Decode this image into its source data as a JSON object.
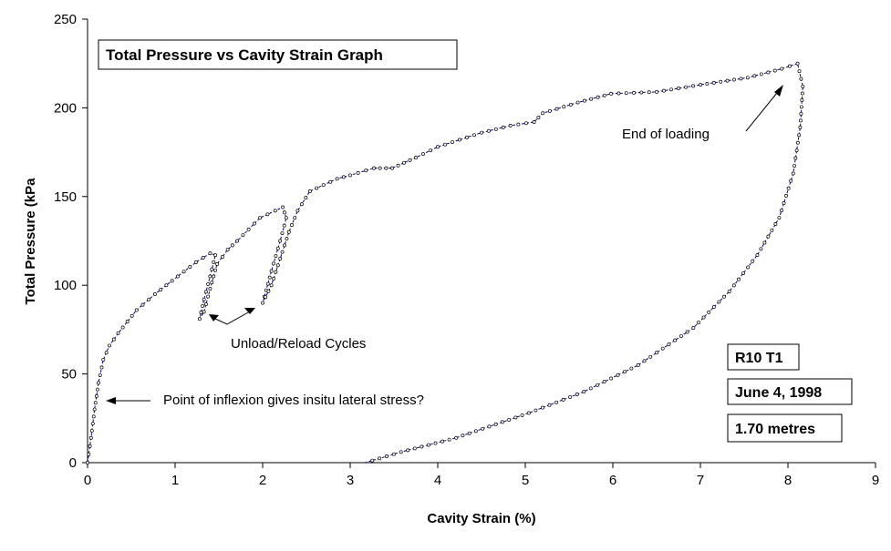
{
  "chart_data": {
    "type": "scatter",
    "title": "Total Pressure vs Cavity Strain Graph",
    "xlabel": "Cavity Strain (%)",
    "ylabel": "Total Pressure (kPa",
    "xlim": [
      0,
      9
    ],
    "ylim": [
      0,
      250
    ],
    "xticks": [
      0,
      1,
      2,
      3,
      4,
      5,
      6,
      7,
      8,
      9
    ],
    "yticks": [
      0,
      50,
      100,
      150,
      200,
      250
    ],
    "grid": false,
    "line_color": "#000080",
    "series": [
      {
        "points": [
          [
            0,
            0
          ],
          [
            0.04,
            14
          ],
          [
            0.08,
            30
          ],
          [
            0.125,
            45
          ],
          [
            0.18,
            58
          ],
          [
            0.25,
            66
          ],
          [
            0.35,
            73
          ],
          [
            0.56,
            86
          ],
          [
            0.77,
            95
          ],
          [
            1.03,
            105
          ],
          [
            1.24,
            113
          ],
          [
            1.4,
            118
          ],
          [
            1.46,
            117
          ],
          [
            1.4,
            105
          ],
          [
            1.33,
            92
          ],
          [
            1.28,
            81
          ],
          [
            1.33,
            85
          ],
          [
            1.4,
            98
          ],
          [
            1.48,
            112
          ],
          [
            1.6,
            120
          ],
          [
            1.71,
            125
          ],
          [
            1.97,
            138
          ],
          [
            2.23,
            144
          ],
          [
            2.27,
            138
          ],
          [
            2.2,
            125
          ],
          [
            2.1,
            108
          ],
          [
            2.0,
            90
          ],
          [
            2.1,
            100
          ],
          [
            2.2,
            115
          ],
          [
            2.3,
            130
          ],
          [
            2.4,
            142
          ],
          [
            2.54,
            153
          ],
          [
            2.85,
            160
          ],
          [
            3.0,
            162
          ],
          [
            3.27,
            166
          ],
          [
            3.48,
            166
          ],
          [
            3.75,
            172
          ],
          [
            4.0,
            178
          ],
          [
            4.5,
            186
          ],
          [
            4.83,
            190
          ],
          [
            5.1,
            192
          ],
          [
            5.2,
            197
          ],
          [
            5.6,
            203
          ],
          [
            5.98,
            208
          ],
          [
            6.5,
            209
          ],
          [
            7.0,
            213
          ],
          [
            7.54,
            217
          ],
          [
            7.93,
            222
          ],
          [
            8.11,
            225
          ],
          [
            8.17,
            212
          ],
          [
            8.14,
            189
          ],
          [
            8.06,
            163
          ],
          [
            7.9,
            138
          ],
          [
            7.65,
            117
          ],
          [
            7.33,
            96.5
          ],
          [
            6.92,
            76
          ],
          [
            6.29,
            55
          ],
          [
            5.67,
            40
          ],
          [
            5.04,
            28
          ],
          [
            4.21,
            14
          ],
          [
            3.58,
            6
          ],
          [
            3.17,
            0
          ]
        ]
      }
    ],
    "annotations": [
      {
        "text": "End of loading"
      },
      {
        "text": "Unload/Reload Cycles"
      },
      {
        "text": "Point of inflexion gives insitu lateral stress?"
      }
    ],
    "info_boxes": [
      "R10 T1",
      "June 4, 1998",
      "1.70 metres"
    ]
  }
}
